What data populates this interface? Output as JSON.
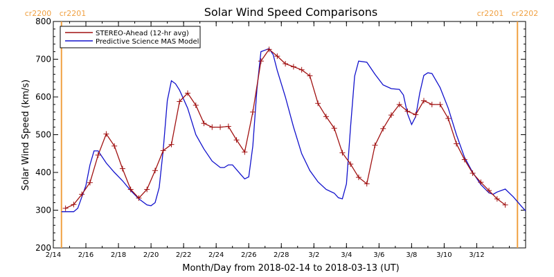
{
  "chart_data": {
    "type": "line",
    "title": "Solar Wind Speed Comparisons",
    "xlabel": "Month/Day from 2018-02-14 to 2018-03-13 (UT)",
    "ylabel": "Solar Wind Speed (km/s)",
    "xlim": [
      "2018-02-14",
      "2018-03-15"
    ],
    "ylim": [
      200,
      800
    ],
    "y_ticks": [
      200,
      300,
      400,
      500,
      600,
      700,
      800
    ],
    "x_ticks": [
      {
        "date": "2018-02-14",
        "label": "2/14"
      },
      {
        "date": "2018-02-16",
        "label": "2/16"
      },
      {
        "date": "2018-02-18",
        "label": "2/18"
      },
      {
        "date": "2018-02-20",
        "label": "2/20"
      },
      {
        "date": "2018-02-22",
        "label": "2/22"
      },
      {
        "date": "2018-02-24",
        "label": "2/24"
      },
      {
        "date": "2018-02-26",
        "label": "2/26"
      },
      {
        "date": "2018-02-28",
        "label": "2/28"
      },
      {
        "date": "2018-03-02",
        "label": "3/2"
      },
      {
        "date": "2018-03-04",
        "label": "3/4"
      },
      {
        "date": "2018-03-06",
        "label": "3/6"
      },
      {
        "date": "2018-03-08",
        "label": "3/8"
      },
      {
        "date": "2018-03-10",
        "label": "3/10"
      },
      {
        "date": "2018-03-12",
        "label": "3/12"
      }
    ],
    "grid": false,
    "legend_position": "top-left",
    "carrington_markers": [
      {
        "date": "2018-02-14T12:00",
        "left_label": "cr2200",
        "right_label": "cr2201",
        "label_side": "left"
      },
      {
        "date": "2018-03-14T12:00",
        "left_label": "cr2201",
        "right_label": "cr2202",
        "label_side": "right"
      }
    ],
    "carrington_color": "#f0a040",
    "series": [
      {
        "name": "STEREO-Ahead (12-hr avg)",
        "color": "#a01010",
        "marker": "plus",
        "points": [
          [
            "2018-02-14T18:00",
            305
          ],
          [
            "2018-02-15T06:00",
            315
          ],
          [
            "2018-02-15T18:00",
            342
          ],
          [
            "2018-02-16T06:00",
            373
          ],
          [
            "2018-02-16T18:00",
            446
          ],
          [
            "2018-02-17T06:00",
            502
          ],
          [
            "2018-02-17T18:00",
            470
          ],
          [
            "2018-02-18T06:00",
            410
          ],
          [
            "2018-02-18T18:00",
            355
          ],
          [
            "2018-02-19T06:00",
            332
          ],
          [
            "2018-02-19T18:00",
            355
          ],
          [
            "2018-02-20T06:00",
            405
          ],
          [
            "2018-02-20T18:00",
            458
          ],
          [
            "2018-02-21T06:00",
            474
          ],
          [
            "2018-02-21T18:00",
            588
          ],
          [
            "2018-02-22T06:00",
            610
          ],
          [
            "2018-02-22T18:00",
            578
          ],
          [
            "2018-02-23T06:00",
            530
          ],
          [
            "2018-02-23T18:00",
            520
          ],
          [
            "2018-02-24T06:00",
            520
          ],
          [
            "2018-02-24T18:00",
            522
          ],
          [
            "2018-02-25T06:00",
            486
          ],
          [
            "2018-02-25T18:00",
            454
          ],
          [
            "2018-02-26T06:00",
            560
          ],
          [
            "2018-02-26T18:00",
            695
          ],
          [
            "2018-02-27T06:00",
            726
          ],
          [
            "2018-02-27T18:00",
            708
          ],
          [
            "2018-02-28T06:00",
            688
          ],
          [
            "2018-02-28T18:00",
            680
          ],
          [
            "2018-03-01T06:00",
            672
          ],
          [
            "2018-03-01T18:00",
            656
          ],
          [
            "2018-03-02T06:00",
            583
          ],
          [
            "2018-03-02T18:00",
            548
          ],
          [
            "2018-03-03T06:00",
            517
          ],
          [
            "2018-03-03T18:00",
            452
          ],
          [
            "2018-03-04T06:00",
            422
          ],
          [
            "2018-03-04T18:00",
            387
          ],
          [
            "2018-03-05T06:00",
            370
          ],
          [
            "2018-03-05T18:00",
            472
          ],
          [
            "2018-03-06T06:00",
            516
          ],
          [
            "2018-03-06T18:00",
            552
          ],
          [
            "2018-03-07T06:00",
            580
          ],
          [
            "2018-03-07T18:00",
            562
          ],
          [
            "2018-03-08T06:00",
            553
          ],
          [
            "2018-03-08T18:00",
            590
          ],
          [
            "2018-03-09T06:00",
            580
          ],
          [
            "2018-03-09T18:00",
            580
          ],
          [
            "2018-03-10T06:00",
            543
          ],
          [
            "2018-03-10T18:00",
            476
          ],
          [
            "2018-03-11T06:00",
            434
          ],
          [
            "2018-03-11T18:00",
            398
          ],
          [
            "2018-03-12T06:00",
            374
          ],
          [
            "2018-03-12T18:00",
            352
          ],
          [
            "2018-03-13T06:00",
            330
          ],
          [
            "2018-03-13T18:00",
            314
          ]
        ]
      },
      {
        "name": "Predictive Science MAS Model",
        "color": "#1010cc",
        "marker": "none",
        "points": [
          [
            "2018-02-14T12:00",
            296
          ],
          [
            "2018-02-15T06:00",
            296
          ],
          [
            "2018-02-15T12:00",
            305
          ],
          [
            "2018-02-16T00:00",
            365
          ],
          [
            "2018-02-16T06:00",
            420
          ],
          [
            "2018-02-16T12:00",
            457
          ],
          [
            "2018-02-16T18:00",
            457
          ],
          [
            "2018-02-17T06:00",
            425
          ],
          [
            "2018-02-17T18:00",
            400
          ],
          [
            "2018-02-18T06:00",
            378
          ],
          [
            "2018-02-18T18:00",
            352
          ],
          [
            "2018-02-19T06:00",
            330
          ],
          [
            "2018-02-19T18:00",
            314
          ],
          [
            "2018-02-20T00:00",
            312
          ],
          [
            "2018-02-20T06:00",
            320
          ],
          [
            "2018-02-20T12:00",
            360
          ],
          [
            "2018-02-20T18:00",
            460
          ],
          [
            "2018-02-21T00:00",
            590
          ],
          [
            "2018-02-21T06:00",
            643
          ],
          [
            "2018-02-21T12:00",
            635
          ],
          [
            "2018-02-21T18:00",
            618
          ],
          [
            "2018-02-22T06:00",
            570
          ],
          [
            "2018-02-22T18:00",
            500
          ],
          [
            "2018-02-23T06:00",
            462
          ],
          [
            "2018-02-23T18:00",
            430
          ],
          [
            "2018-02-24T06:00",
            413
          ],
          [
            "2018-02-24T12:00",
            413
          ],
          [
            "2018-02-24T18:00",
            420
          ],
          [
            "2018-02-25T00:00",
            420
          ],
          [
            "2018-02-25T12:00",
            395
          ],
          [
            "2018-02-25T18:00",
            383
          ],
          [
            "2018-02-26T00:00",
            388
          ],
          [
            "2018-02-26T06:00",
            470
          ],
          [
            "2018-02-26T12:00",
            620
          ],
          [
            "2018-02-26T18:00",
            720
          ],
          [
            "2018-02-27T06:00",
            728
          ],
          [
            "2018-02-27T12:00",
            712
          ],
          [
            "2018-02-27T18:00",
            670
          ],
          [
            "2018-02-28T06:00",
            600
          ],
          [
            "2018-02-28T18:00",
            520
          ],
          [
            "2018-03-01T06:00",
            450
          ],
          [
            "2018-03-01T18:00",
            405
          ],
          [
            "2018-03-02T06:00",
            375
          ],
          [
            "2018-03-02T18:00",
            355
          ],
          [
            "2018-03-03T06:00",
            345
          ],
          [
            "2018-03-03T12:00",
            333
          ],
          [
            "2018-03-03T18:00",
            330
          ],
          [
            "2018-03-04T00:00",
            370
          ],
          [
            "2018-03-04T06:00",
            520
          ],
          [
            "2018-03-04T12:00",
            655
          ],
          [
            "2018-03-04T18:00",
            695
          ],
          [
            "2018-03-05T06:00",
            692
          ],
          [
            "2018-03-05T18:00",
            660
          ],
          [
            "2018-03-06T06:00",
            632
          ],
          [
            "2018-03-06T18:00",
            622
          ],
          [
            "2018-03-07T06:00",
            620
          ],
          [
            "2018-03-07T12:00",
            605
          ],
          [
            "2018-03-07T18:00",
            555
          ],
          [
            "2018-03-08T00:00",
            527
          ],
          [
            "2018-03-08T06:00",
            548
          ],
          [
            "2018-03-08T12:00",
            610
          ],
          [
            "2018-03-08T18:00",
            657
          ],
          [
            "2018-03-09T00:00",
            664
          ],
          [
            "2018-03-09T06:00",
            662
          ],
          [
            "2018-03-09T18:00",
            625
          ],
          [
            "2018-03-10T06:00",
            570
          ],
          [
            "2018-03-10T18:00",
            500
          ],
          [
            "2018-03-11T06:00",
            440
          ],
          [
            "2018-03-11T18:00",
            400
          ],
          [
            "2018-03-12T06:00",
            368
          ],
          [
            "2018-03-12T18:00",
            346
          ],
          [
            "2018-03-13T00:00",
            342
          ],
          [
            "2018-03-13T06:00",
            348
          ],
          [
            "2018-03-13T18:00",
            356
          ],
          [
            "2018-03-14T06:00",
            335
          ],
          [
            "2018-03-14T18:00",
            310
          ],
          [
            "2018-03-15T00:00",
            298
          ]
        ]
      }
    ]
  }
}
